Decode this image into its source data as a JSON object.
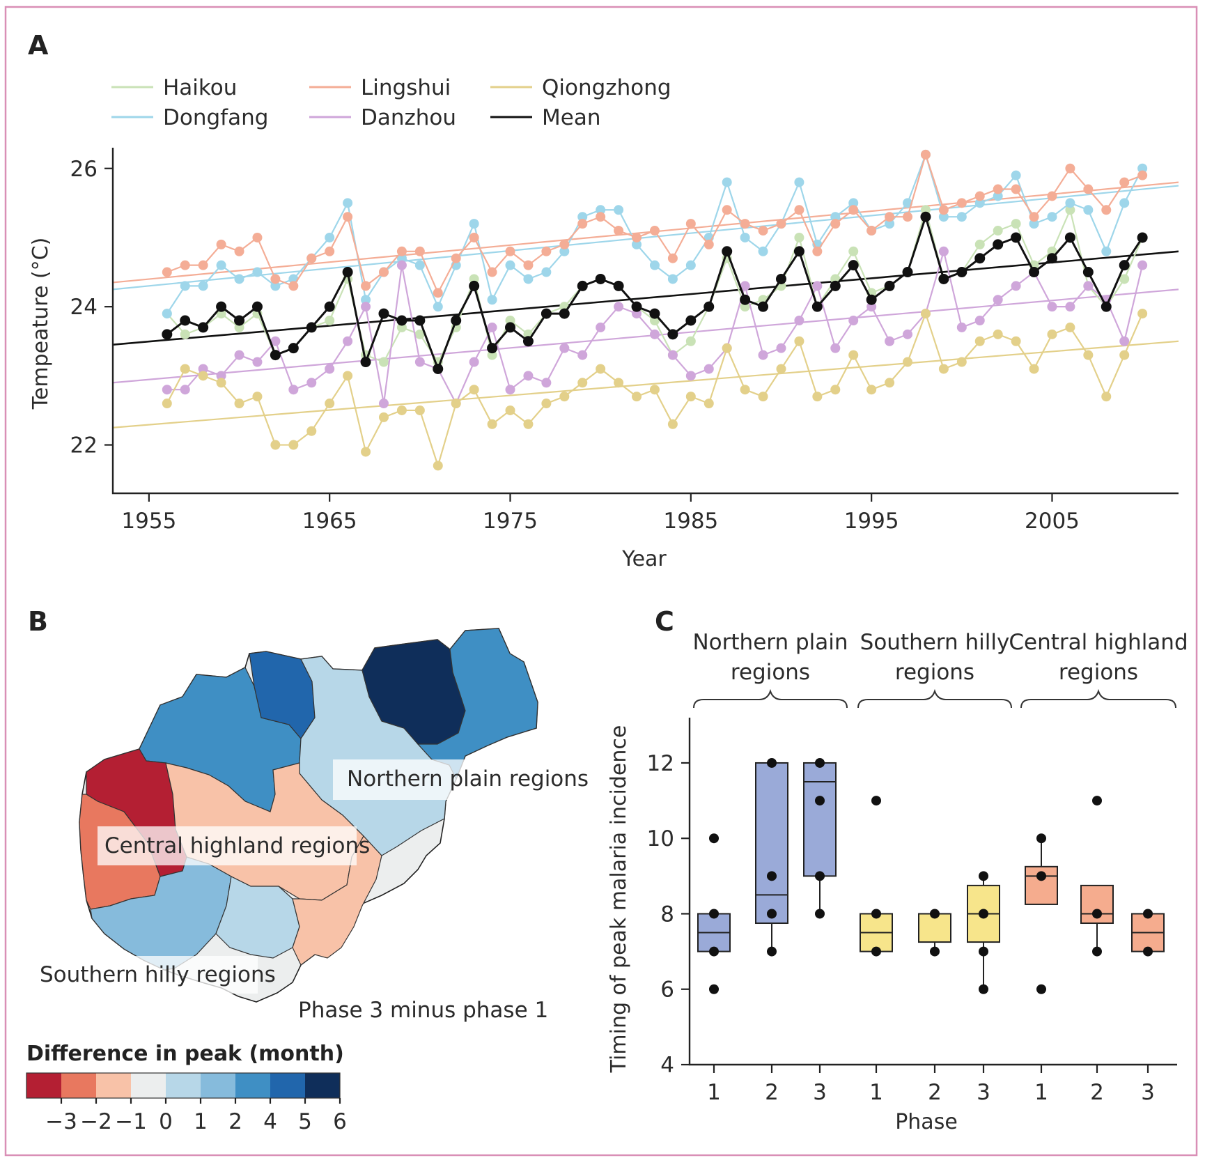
{
  "panels": {
    "a": "A",
    "b": "B",
    "c": "C"
  },
  "colors": {
    "Haikou": "#c9e2b6",
    "Dongfang": "#9ed6ea",
    "Danzhou": "#cfa6da",
    "Lingshui": "#f4ad96",
    "Qiongzhong": "#e3d08a",
    "Mean": "#111111",
    "box_northern": "#9aaad8",
    "box_southern": "#f7e58b",
    "box_central": "#f5ac8e"
  },
  "chart_data": [
    {
      "type": "line",
      "panel": "A",
      "xlabel": "Year",
      "ylabel": "Tempeature (°C)",
      "xlim": [
        1953,
        2012
      ],
      "ylim": [
        21.3,
        26.3
      ],
      "xticks": [
        "1955",
        "1965",
        "1975",
        "1985",
        "1995",
        "2005"
      ],
      "yticks": [
        "22",
        "24",
        "26"
      ],
      "legend_position": "top-left",
      "legend": [
        "Haikou",
        "Dongfang",
        "Lingshui",
        "Danzhou",
        "Qiongzhong",
        "Mean"
      ],
      "x": [
        1956,
        1957,
        1958,
        1959,
        1960,
        1961,
        1962,
        1963,
        1964,
        1965,
        1966,
        1967,
        1968,
        1969,
        1970,
        1971,
        1972,
        1973,
        1974,
        1975,
        1976,
        1977,
        1978,
        1979,
        1980,
        1981,
        1982,
        1983,
        1984,
        1985,
        1986,
        1987,
        1988,
        1989,
        1990,
        1991,
        1992,
        1993,
        1994,
        1995,
        1996,
        1997,
        1998,
        1999,
        2000,
        2001,
        2002,
        2003,
        2004,
        2005,
        2006,
        2007,
        2008,
        2009,
        2010
      ],
      "series": [
        {
          "name": "Haikou",
          "values": [
            23.9,
            23.6,
            23.7,
            23.9,
            23.7,
            23.9,
            23.3,
            23.4,
            23.7,
            23.8,
            24.4,
            23.3,
            23.2,
            23.7,
            23.6,
            23.2,
            23.7,
            24.4,
            23.3,
            23.8,
            23.6,
            23.9,
            24.0,
            24.3,
            24.4,
            24.3,
            24.0,
            23.8,
            23.3,
            23.5,
            24.0,
            24.7,
            24.0,
            24.1,
            24.3,
            25.0,
            24.0,
            24.4,
            24.8,
            24.2,
            24.3,
            24.5,
            25.4,
            24.4,
            24.5,
            24.9,
            25.1,
            25.2,
            24.6,
            24.8,
            25.4,
            24.3,
            24.0,
            24.4,
            25.0
          ]
        },
        {
          "name": "Dongfang",
          "values": [
            23.9,
            24.3,
            24.3,
            24.6,
            24.4,
            24.5,
            24.3,
            24.4,
            24.7,
            25.0,
            25.5,
            24.1,
            24.5,
            24.7,
            24.6,
            24.0,
            24.6,
            25.2,
            24.1,
            24.6,
            24.4,
            24.5,
            24.8,
            25.3,
            25.4,
            25.4,
            24.9,
            24.6,
            24.4,
            24.6,
            25.0,
            25.8,
            25.0,
            24.8,
            25.2,
            25.8,
            24.9,
            25.3,
            25.5,
            25.1,
            25.2,
            25.5,
            26.2,
            25.3,
            25.3,
            25.5,
            25.6,
            25.9,
            25.2,
            25.3,
            25.5,
            25.4,
            24.8,
            25.5,
            26.0
          ]
        },
        {
          "name": "Lingshui",
          "values": [
            24.5,
            24.6,
            24.6,
            24.9,
            24.8,
            25.0,
            24.4,
            24.3,
            24.7,
            24.8,
            25.3,
            24.3,
            24.5,
            24.8,
            24.8,
            24.2,
            24.7,
            25.0,
            24.5,
            24.8,
            24.6,
            24.8,
            24.9,
            25.2,
            25.3,
            25.1,
            25.0,
            25.1,
            24.7,
            25.2,
            24.9,
            25.4,
            25.2,
            25.1,
            25.2,
            25.4,
            24.8,
            25.2,
            25.4,
            25.1,
            25.3,
            25.3,
            26.2,
            25.4,
            25.5,
            25.6,
            25.7,
            25.7,
            25.3,
            25.6,
            26.0,
            25.7,
            25.4,
            25.8,
            25.9
          ]
        },
        {
          "name": "Danzhou",
          "values": [
            22.8,
            22.8,
            23.1,
            23.0,
            23.3,
            23.2,
            23.5,
            22.8,
            22.9,
            23.1,
            23.5,
            24.0,
            22.6,
            24.6,
            23.2,
            23.1,
            22.6,
            23.2,
            23.7,
            22.8,
            23.0,
            22.9,
            23.4,
            23.3,
            23.7,
            24.0,
            23.9,
            23.6,
            23.3,
            23.0,
            23.1,
            23.4,
            24.3,
            23.3,
            23.4,
            23.8,
            24.3,
            23.4,
            23.8,
            24.0,
            23.5,
            23.6,
            23.9,
            24.8,
            23.7,
            23.8,
            24.1,
            24.3,
            24.5,
            24.0,
            24.0,
            24.3,
            24.1,
            23.5,
            24.6
          ]
        },
        {
          "name": "Qiongzhong",
          "values": [
            22.6,
            23.1,
            23.0,
            22.9,
            22.6,
            22.7,
            22.0,
            22.0,
            22.2,
            22.6,
            23.0,
            21.9,
            22.4,
            22.5,
            22.5,
            21.7,
            22.6,
            22.8,
            22.3,
            22.5,
            22.3,
            22.6,
            22.7,
            22.9,
            23.1,
            22.9,
            22.7,
            22.8,
            22.3,
            22.7,
            22.6,
            23.4,
            22.8,
            22.7,
            23.1,
            23.5,
            22.7,
            22.8,
            23.3,
            22.8,
            22.9,
            23.2,
            23.9,
            23.1,
            23.2,
            23.5,
            23.6,
            23.5,
            23.1,
            23.6,
            23.7,
            23.3,
            22.7,
            23.3,
            23.9
          ]
        },
        {
          "name": "Mean",
          "values": [
            23.6,
            23.8,
            23.7,
            24.0,
            23.8,
            24.0,
            23.3,
            23.4,
            23.7,
            24.0,
            24.5,
            23.2,
            23.9,
            23.8,
            23.8,
            23.1,
            23.8,
            24.3,
            23.4,
            23.7,
            23.5,
            23.9,
            23.9,
            24.3,
            24.4,
            24.3,
            24.0,
            23.9,
            23.6,
            23.8,
            24.0,
            24.8,
            24.1,
            24.0,
            24.4,
            24.8,
            24.0,
            24.3,
            24.6,
            24.1,
            24.3,
            24.5,
            25.3,
            24.4,
            24.5,
            24.7,
            24.9,
            25.0,
            24.5,
            24.7,
            25.0,
            24.5,
            24.0,
            24.6,
            25.0
          ]
        }
      ],
      "trendlines": [
        {
          "name": "Haikou",
          "start": [
            1953,
            23.45
          ],
          "end": [
            2012,
            24.8
          ]
        },
        {
          "name": "Dongfang",
          "start": [
            1953,
            24.25
          ],
          "end": [
            2012,
            25.75
          ]
        },
        {
          "name": "Lingshui",
          "start": [
            1953,
            24.35
          ],
          "end": [
            2012,
            25.8
          ]
        },
        {
          "name": "Danzhou",
          "start": [
            1953,
            22.9
          ],
          "end": [
            2012,
            24.25
          ]
        },
        {
          "name": "Qiongzhong",
          "start": [
            1953,
            22.25
          ],
          "end": [
            2012,
            23.5
          ]
        },
        {
          "name": "Mean",
          "start": [
            1953,
            23.45
          ],
          "end": [
            2012,
            24.8
          ]
        }
      ]
    },
    {
      "type": "boxplot",
      "panel": "C",
      "xlabel": "Phase",
      "ylabel": "Timing of peak malaria incidence",
      "ylim": [
        4,
        13.2
      ],
      "yticks": [
        "4",
        "6",
        "8",
        "10",
        "12"
      ],
      "group_labels": [
        {
          "name": "Northern plain regions",
          "lines": [
            "Northern plain",
            "regions"
          ]
        },
        {
          "name": "Southern hilly regions",
          "lines": [
            "Southern hilly",
            "regions"
          ]
        },
        {
          "name": "Central highland regions",
          "lines": [
            "Central highland",
            "regions"
          ]
        }
      ],
      "boxes": [
        {
          "group": "Northern plain regions",
          "phase": "1",
          "q1": 7.0,
          "median": 7.5,
          "q3": 8.0,
          "whisker_low": 7.0,
          "whisker_high": 8.0,
          "points": [
            6,
            7,
            8,
            10
          ]
        },
        {
          "group": "Northern plain regions",
          "phase": "2",
          "q1": 7.75,
          "median": 8.5,
          "q3": 12.0,
          "whisker_low": 7.0,
          "whisker_high": 12.0,
          "points": [
            7,
            8,
            9,
            12
          ]
        },
        {
          "group": "Northern plain regions",
          "phase": "3",
          "q1": 9.0,
          "median": 11.5,
          "q3": 12.0,
          "whisker_low": 8.0,
          "whisker_high": 12.0,
          "points": [
            8,
            9,
            11,
            12
          ]
        },
        {
          "group": "Southern hilly regions",
          "phase": "1",
          "q1": 7.0,
          "median": 7.5,
          "q3": 8.0,
          "whisker_low": 7.0,
          "whisker_high": 8.0,
          "points": [
            7,
            8,
            11
          ]
        },
        {
          "group": "Southern hilly regions",
          "phase": "2",
          "q1": 7.25,
          "median": 8.0,
          "q3": 8.0,
          "whisker_low": 7.0,
          "whisker_high": 8.0,
          "points": [
            7,
            8
          ]
        },
        {
          "group": "Southern hilly regions",
          "phase": "3",
          "q1": 7.25,
          "median": 8.0,
          "q3": 8.75,
          "whisker_low": 6.0,
          "whisker_high": 9.0,
          "points": [
            6,
            7,
            8,
            9
          ]
        },
        {
          "group": "Central highland regions",
          "phase": "1",
          "q1": 8.25,
          "median": 9.0,
          "q3": 9.25,
          "whisker_low": 8.25,
          "whisker_high": 10.0,
          "points": [
            6,
            9,
            10
          ]
        },
        {
          "group": "Central highland regions",
          "phase": "2",
          "q1": 7.75,
          "median": 8.0,
          "q3": 8.75,
          "whisker_low": 7.0,
          "whisker_high": 8.75,
          "points": [
            7,
            8,
            11
          ]
        },
        {
          "group": "Central highland regions",
          "phase": "3",
          "q1": 7.0,
          "median": 7.5,
          "q3": 8.0,
          "whisker_low": 7.0,
          "whisker_high": 8.0,
          "points": [
            7,
            8
          ]
        }
      ]
    }
  ],
  "map": {
    "region_labels": [
      "Northern plain regions",
      "Central highland regions",
      "Southern hilly regions"
    ],
    "caption": "Phase 3 minus phase 1",
    "colorbar_title": "Difference in peak (month)",
    "colorbar_ticks": [
      "−3",
      "−2",
      "−1",
      "0",
      "1",
      "2",
      "4",
      "5",
      "6"
    ],
    "colorbar_colors": [
      "#b41f33",
      "#e8785f",
      "#f8c2a8",
      "#eceeee",
      "#b7d7e8",
      "#86bbdc",
      "#3f8fc4",
      "#2166ac",
      "#0f2e5a"
    ]
  }
}
